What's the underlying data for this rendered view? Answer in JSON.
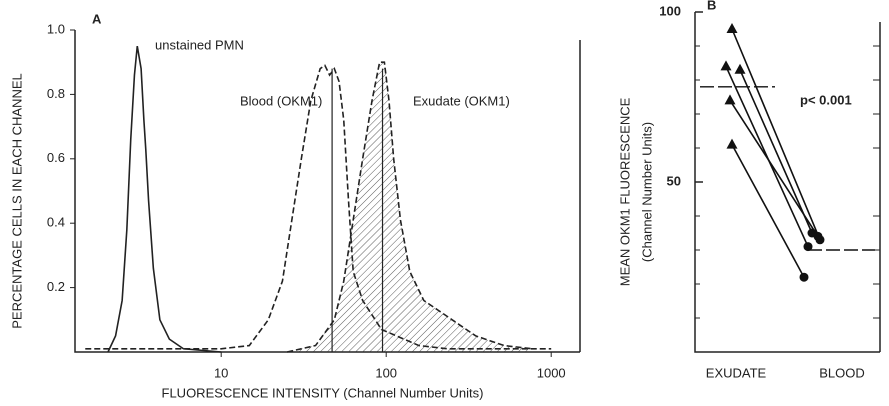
{
  "chart_data": [
    {
      "type": "line",
      "panel_label": "A",
      "xlabel": "FLUORESCENCE INTENSITY (Channel Number Units)",
      "ylabel": "PERCENTAGE CELLS IN EACH CHANNEL",
      "xscale": "log",
      "xlim": [
        1.3,
        1300
      ],
      "xticks": [
        10,
        100,
        1000
      ],
      "ylim": [
        0,
        1
      ],
      "yticks": [
        0.2,
        0.4,
        0.6,
        0.8,
        {
          "value": 1,
          "label": "1.0"
        }
      ],
      "vlines": [
        47,
        95
      ],
      "series": [
        {
          "name": "unstained PMN",
          "color": "#222222",
          "dash": false,
          "hatch": false,
          "x": [
            2.06,
            2.29,
            2.51,
            2.68,
            2.83,
            2.98,
            3.1,
            3.27,
            3.4,
            3.49,
            3.63,
            3.88,
            4.25,
            4.85,
            5.9,
            10
          ],
          "values": [
            0,
            0.05,
            0.16,
            0.38,
            0.66,
            0.86,
            0.95,
            0.88,
            0.72,
            0.63,
            0.47,
            0.26,
            0.1,
            0.04,
            0.01,
            0
          ]
        },
        {
          "name": "Blood (OKM1)",
          "color": "#222222",
          "dash": true,
          "hatch": false,
          "x": [
            1.5,
            10,
            14.8,
            19.3,
            23.5,
            26.8,
            30.6,
            34.9,
            39.8,
            42.5,
            45.4,
            48.5,
            51.8,
            55.3,
            59.1,
            63.1,
            72,
            93.6,
            158,
            235,
            1000
          ],
          "values": [
            0.01,
            0.01,
            0.02,
            0.1,
            0.22,
            0.41,
            0.6,
            0.78,
            0.88,
            0.89,
            0.86,
            0.88,
            0.84,
            0.72,
            0.47,
            0.25,
            0.16,
            0.07,
            0.02,
            0.01,
            0.01
          ]
        },
        {
          "name": "Exudate (OKM1)",
          "color": "#222222",
          "dash": true,
          "hatch": true,
          "x": [
            25.1,
            37.3,
            48.5,
            55.3,
            63.1,
            72,
            82,
            91.2,
            97.5,
            104,
            111,
            122,
            139,
            169,
            206,
            251,
            349,
            518,
            769
          ],
          "values": [
            0,
            0.02,
            0.1,
            0.22,
            0.41,
            0.6,
            0.78,
            0.9,
            0.9,
            0.78,
            0.6,
            0.41,
            0.25,
            0.16,
            0.13,
            0.1,
            0.05,
            0.02,
            0.01
          ]
        }
      ]
    },
    {
      "type": "paired-dot",
      "panel_label": "B",
      "ylabel": "MEAN OKM1 FLUORESCENCE",
      "ylabel2": "(Channel Number Units)",
      "categories": [
        "EXUDATE",
        "BLOOD"
      ],
      "ylim": [
        0,
        100
      ],
      "yticks": [
        50,
        100
      ],
      "minor_yticks": [
        10,
        20,
        30,
        40,
        60,
        70,
        80,
        90
      ],
      "pairs": [
        [
          95,
          33
        ],
        [
          84,
          31
        ],
        [
          83,
          35
        ],
        [
          74,
          34
        ],
        [
          61,
          22
        ]
      ],
      "means": [
        78,
        30
      ],
      "annotation": "p< 0.001"
    }
  ]
}
